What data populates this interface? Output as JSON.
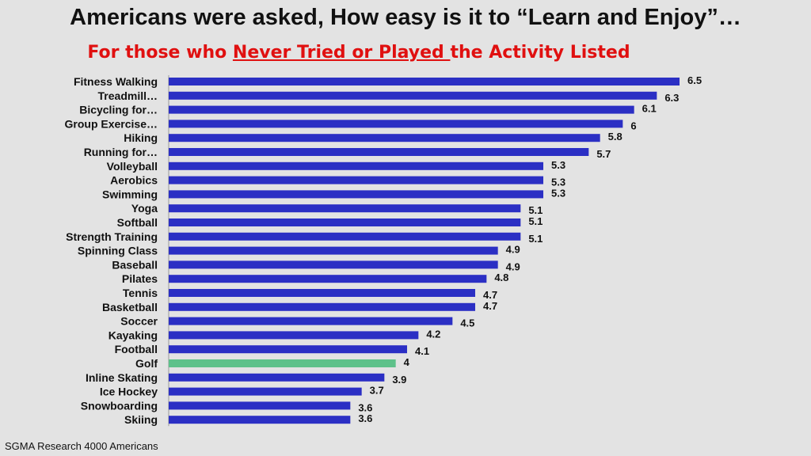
{
  "title": "Americans were asked, How easy is it to “Learn and Enjoy”…",
  "subtitle": {
    "prefix": "For those who ",
    "underlined": "Never Tried or Played ",
    "suffix": "the Activity Listed"
  },
  "source": "SGMA Research 4000 Americans",
  "colors": {
    "bar": "#2b2fc4",
    "highlight": "#5ec18a",
    "title": "#111111",
    "subtitle": "#e01010",
    "background": "#e3e3e3"
  },
  "chart_data": {
    "type": "bar",
    "orientation": "horizontal",
    "categories": [
      "Fitness Walking",
      "Treadmill…",
      "Bicycling for…",
      "Group Exercise…",
      "Hiking",
      "Running for…",
      "Volleyball",
      "Aerobics",
      "Swimming",
      "Yoga",
      "Softball",
      "Strength Training",
      "Spinning Class",
      "Baseball",
      "Pilates",
      "Tennis",
      "Basketball",
      "Soccer",
      "Kayaking",
      "Football",
      "Golf",
      "Inline Skating",
      "Ice Hockey",
      "Snowboarding",
      "Skiing"
    ],
    "values": [
      6.5,
      6.3,
      6.1,
      6,
      5.8,
      5.7,
      5.3,
      5.3,
      5.3,
      5.1,
      5.1,
      5.1,
      4.9,
      4.9,
      4.8,
      4.7,
      4.7,
      4.5,
      4.2,
      4.1,
      4,
      3.9,
      3.7,
      3.6,
      3.6
    ],
    "value_labels": [
      "6.5",
      "6.3",
      "6.1",
      "6",
      "5.8",
      "5.7",
      "5.3",
      "5.3",
      "5.3",
      "5.1",
      "5.1",
      "5.1",
      "4.9",
      "4.9",
      "4.8",
      "4.7",
      "4.7",
      "4.5",
      "4.2",
      "4.1",
      "4",
      "3.9",
      "3.7",
      "3.6",
      "3.6"
    ],
    "highlight_category": "Golf",
    "xlim": [
      2,
      6.5
    ],
    "grid": false,
    "legend": "none"
  }
}
